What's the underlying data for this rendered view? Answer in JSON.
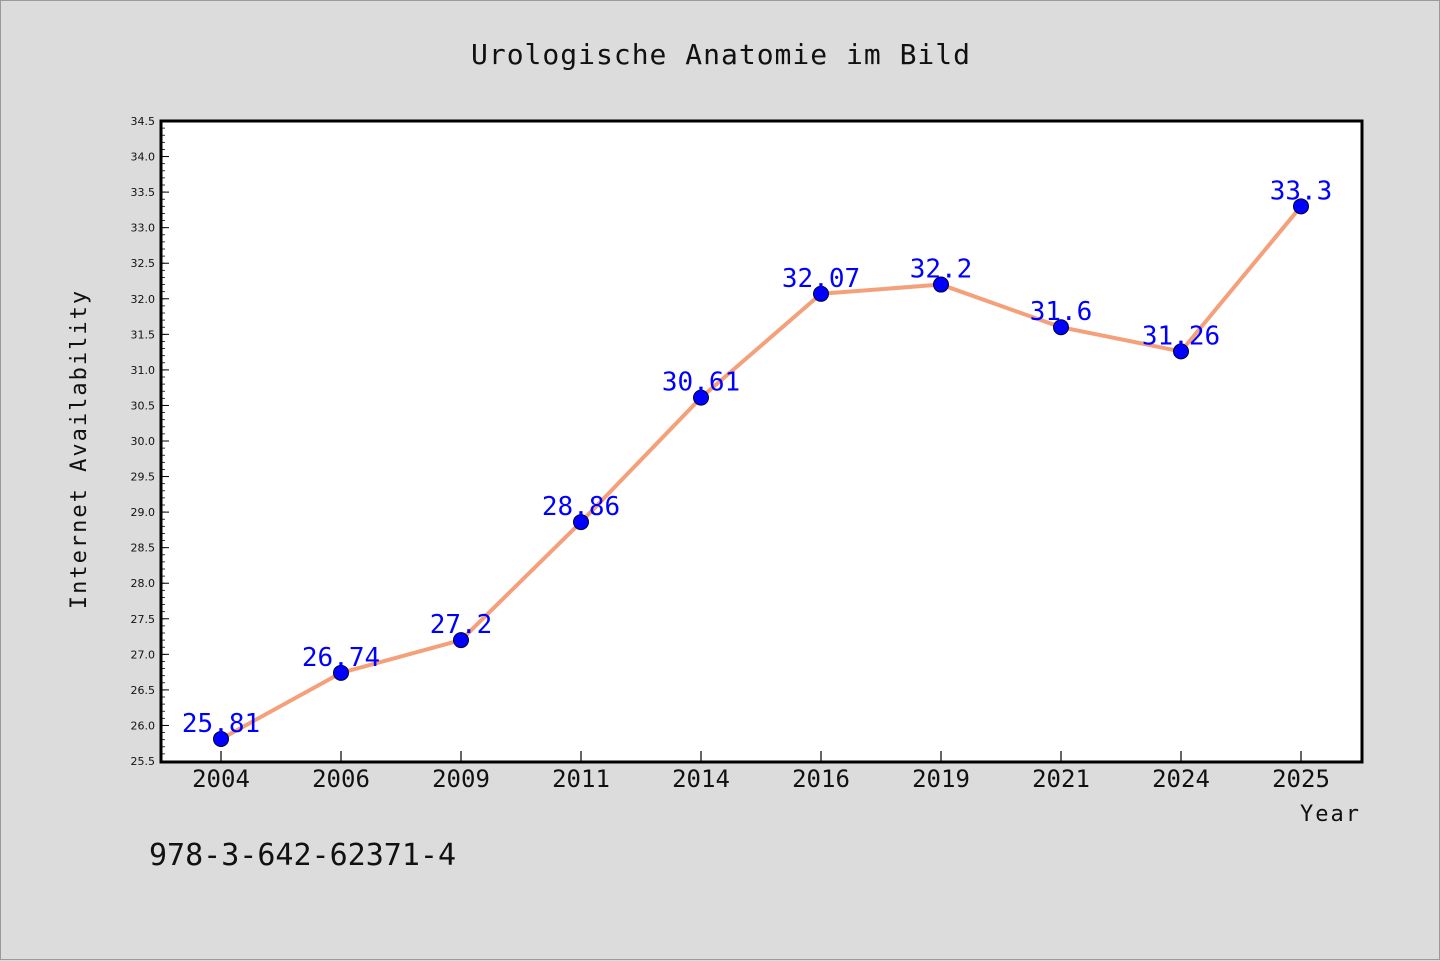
{
  "chart_data": {
    "type": "line",
    "title": "Urologische Anatomie im Bild",
    "xlabel": "Year",
    "ylabel": "Internet Availability",
    "categories": [
      "2004",
      "2006",
      "2009",
      "2011",
      "2014",
      "2016",
      "2019",
      "2021",
      "2024",
      "2025"
    ],
    "series": [
      {
        "values": [
          25.81,
          26.74,
          27.2,
          28.86,
          30.61,
          32.07,
          32.2,
          31.6,
          31.26,
          33.3
        ],
        "line_color": "#f4a07a",
        "marker_color": "#0000ff"
      }
    ],
    "data_labels": [
      "25.81",
      "26.74",
      "27.2",
      "28.86",
      "30.61",
      "32.07",
      "32.2",
      "31.6",
      "31.26",
      "33.3"
    ],
    "ylim": [
      25.5,
      34.5
    ],
    "yticks": [
      "25.5",
      "26.0",
      "26.5",
      "27.0",
      "27.5",
      "28.0",
      "28.5",
      "29.0",
      "29.5",
      "30.0",
      "30.5",
      "31.0",
      "31.5",
      "32.0",
      "32.5",
      "33.0",
      "33.5",
      "34.0",
      "34.5"
    ],
    "grid": false,
    "legend": "none",
    "label_color": "#0000ff"
  },
  "footer": {
    "isbn": "978-3-642-62371-4"
  }
}
